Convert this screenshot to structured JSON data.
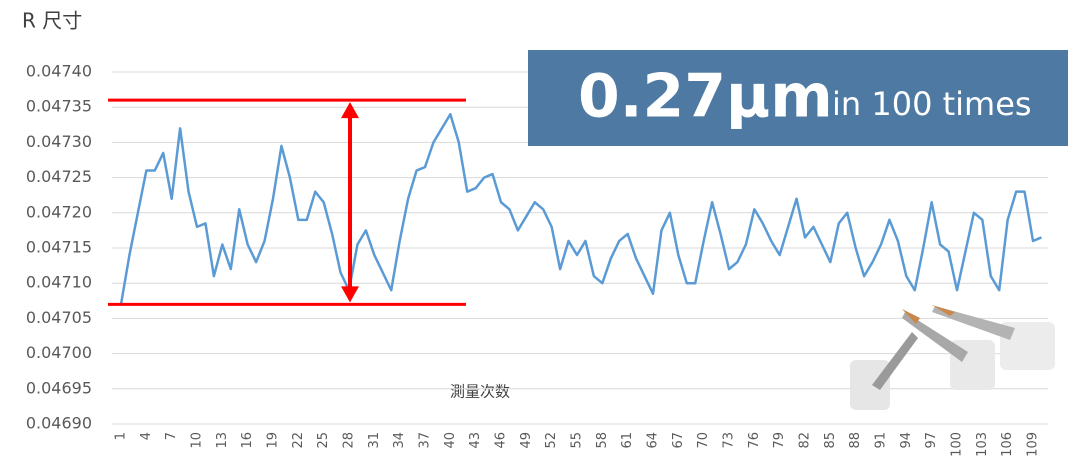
{
  "chart_data": {
    "type": "line",
    "y_axis_title": "R 尺寸",
    "x_axis_title": "測量次数",
    "annotations": [
      "0.27μm",
      "in 100 times"
    ],
    "categories": [
      "1",
      null,
      null,
      "4",
      null,
      null,
      "7",
      null,
      null,
      "10",
      null,
      null,
      "13",
      null,
      null,
      "16",
      null,
      null,
      "19",
      null,
      null,
      "22",
      null,
      null,
      "25",
      null,
      null,
      "28",
      null,
      null,
      "31",
      null,
      null,
      "34",
      null,
      null,
      "37",
      null,
      null,
      "40",
      null,
      null,
      "43",
      null,
      null,
      "46",
      null,
      null,
      "49",
      null,
      null,
      "52",
      null,
      null,
      "55",
      null,
      null,
      "58",
      null,
      null,
      "61",
      null,
      null,
      "64",
      null,
      null,
      "67",
      null,
      null,
      "70",
      null,
      null,
      "73",
      null,
      null,
      "76",
      null,
      null,
      "79",
      null,
      null,
      "82",
      null,
      null,
      "85",
      null,
      null,
      "88",
      null,
      null,
      "91",
      null,
      null,
      "94",
      null,
      null,
      "97",
      null,
      null,
      "100",
      null,
      null,
      "103",
      null,
      null,
      "106",
      null,
      null,
      "109",
      null
    ],
    "series": [
      {
        "name": "R",
        "color": "#5b9bd5",
        "values": [
          0.04707,
          0.04714,
          0.0472,
          0.04726,
          0.04726,
          0.047285,
          0.04722,
          0.04732,
          0.04723,
          0.04718,
          0.047185,
          0.04711,
          0.047155,
          0.04712,
          0.047205,
          0.047155,
          0.04713,
          0.04716,
          0.04722,
          0.047295,
          0.04725,
          0.04719,
          0.04719,
          0.04723,
          0.047215,
          0.04717,
          0.047115,
          0.04709,
          0.047155,
          0.047175,
          0.04714,
          0.047115,
          0.04709,
          0.04716,
          0.04722,
          0.04726,
          0.047265,
          0.0473,
          0.04732,
          0.04734,
          0.0473,
          0.04723,
          0.047235,
          0.04725,
          0.047255,
          0.047215,
          0.047205,
          0.047175,
          0.047195,
          0.047215,
          0.047205,
          0.04718,
          0.04712,
          0.04716,
          0.04714,
          0.04716,
          0.04711,
          0.0471,
          0.047135,
          0.04716,
          0.04717,
          0.047135,
          0.04711,
          0.047085,
          0.047175,
          0.0472,
          0.04714,
          0.0471,
          0.0471,
          0.04716,
          0.047215,
          0.04717,
          0.04712,
          0.04713,
          0.047155,
          0.047205,
          0.047185,
          0.04716,
          0.04714,
          0.04718,
          0.04722,
          0.047165,
          0.04718,
          0.047155,
          0.04713,
          0.047185,
          0.0472,
          0.04715,
          0.04711,
          0.04713,
          0.047155,
          0.04719,
          0.04716,
          0.04711,
          0.04709,
          0.04715,
          0.047215,
          0.047155,
          0.047145,
          0.04709,
          0.047145,
          0.0472,
          0.04719,
          0.04711,
          0.04709,
          0.04719,
          0.04723,
          0.04723,
          0.04716,
          0.047165
        ]
      }
    ],
    "reference_lines": [
      0.04736,
      0.04707
    ],
    "reference_color": "#ff0000",
    "ylim": [
      0.0469,
      0.0474
    ],
    "yticks": [
      {
        "value": 0.0469,
        "label": "0.04690"
      },
      0.04695,
      {
        "value": 0.047,
        "label": "0.04700"
      },
      0.04705,
      {
        "value": 0.0471,
        "label": "0.04710"
      },
      0.04715,
      {
        "value": 0.0472,
        "label": "0.04720"
      },
      0.04725,
      {
        "value": 0.0473,
        "label": "0.04730"
      },
      0.04735,
      {
        "value": 0.0474,
        "label": "0.04740"
      }
    ],
    "grid": true
  }
}
